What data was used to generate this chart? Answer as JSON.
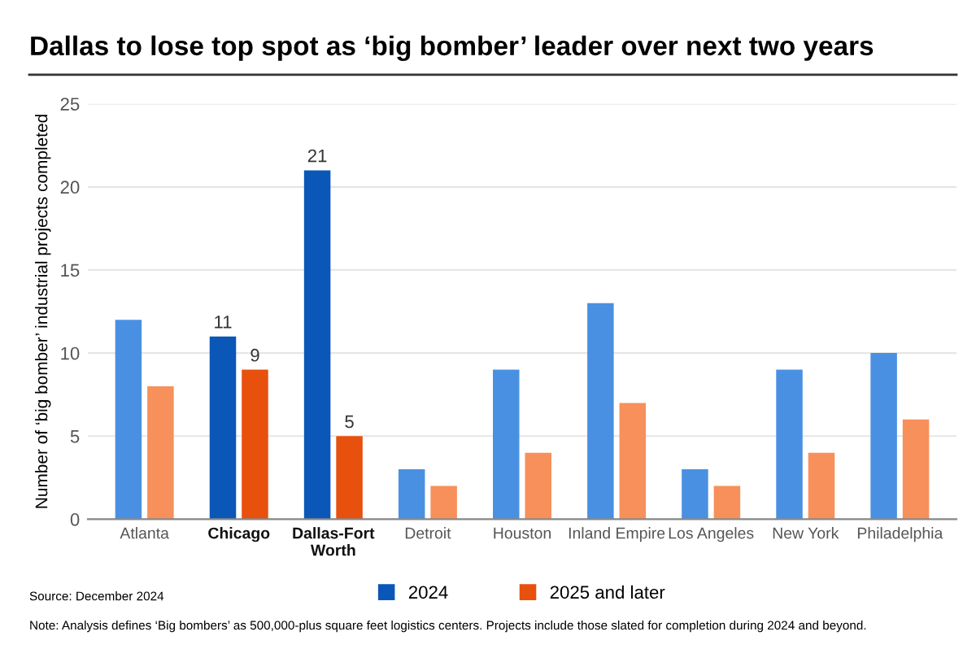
{
  "chart_data": {
    "type": "bar",
    "title": "Dallas to lose top spot as ‘big bomber’ leader over next two years",
    "ylabel": "Number of ‘big bomber’ industrial projects completed",
    "categories": [
      "Atlanta",
      "Chicago",
      "Dallas-Fort\nWorth",
      "Detroit",
      "Houston",
      "Inland Empire",
      "Los Angeles",
      "New York",
      "Philadelphia"
    ],
    "series": [
      {
        "name": "2024",
        "color": "#0b57b8",
        "colors": [
          "#4a90e2",
          "#0b57b8",
          "#0b57b8",
          "#4a90e2",
          "#4a90e2",
          "#4a90e2",
          "#4a90e2",
          "#4a90e2",
          "#4a90e2"
        ],
        "values": [
          12,
          11,
          21,
          3,
          9,
          13,
          3,
          9,
          10
        ],
        "value_labels": [
          null,
          "11",
          "21",
          null,
          null,
          null,
          null,
          null,
          null
        ]
      },
      {
        "name": "2025 and later",
        "color": "#e8500e",
        "colors": [
          "#f7905a",
          "#e8500e",
          "#e8500e",
          "#f7905a",
          "#f7905a",
          "#f7905a",
          "#f7905a",
          "#f7905a",
          "#f7905a"
        ],
        "values": [
          8,
          9,
          5,
          2,
          4,
          7,
          2,
          4,
          6
        ],
        "value_labels": [
          null,
          "9",
          "5",
          null,
          null,
          null,
          null,
          null,
          null
        ]
      }
    ],
    "ylim": [
      0,
      25
    ],
    "yticks": [
      0,
      5,
      10,
      15,
      20,
      25
    ],
    "grid": "y",
    "legend": "bottom",
    "annotations": [
      "Source: December 2024",
      "Note: Analysis defines ‘Big bombers’ as 500,000-plus square feet logistics centers. Projects include those slated for completion during 2024 and beyond."
    ]
  }
}
